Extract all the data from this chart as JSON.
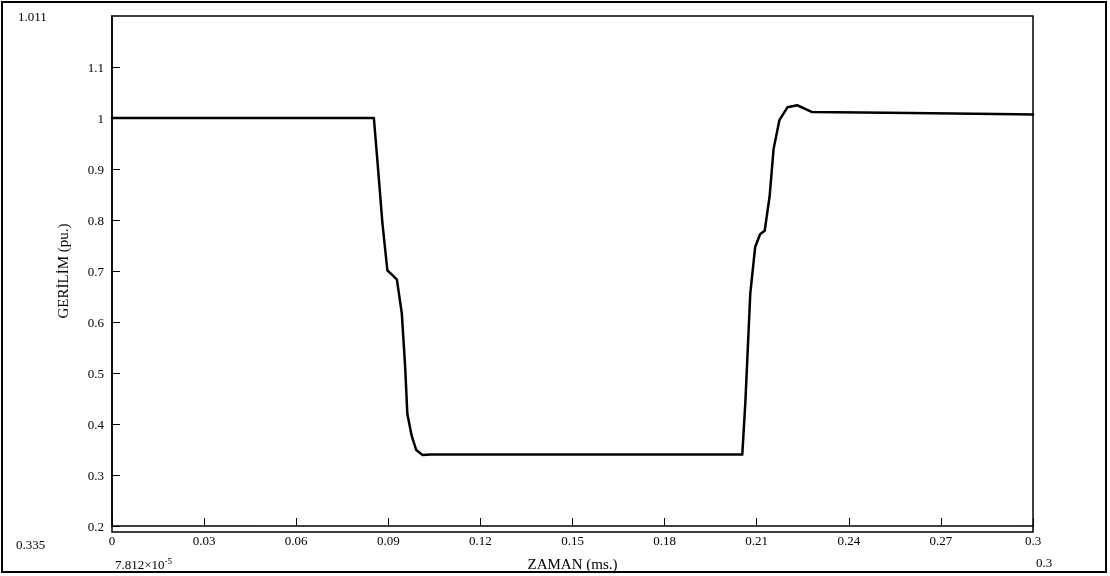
{
  "chart_data": {
    "type": "line",
    "xlabel": "ZAMAN (ms.)",
    "ylabel": "GERİLİM (pu.)",
    "annotations": [
      "1.011",
      "0.335",
      "7.812×10$^{-5}$",
      "0.3"
    ],
    "xlim": [
      0,
      0.3
    ],
    "xticks": [
      0,
      0.03,
      0.06,
      0.09,
      0.12,
      0.15,
      0.18,
      0.21,
      0.24,
      0.27,
      0.3
    ],
    "ylim": [
      0.2,
      1.2
    ],
    "yticks": [
      0.2,
      0.3,
      0.4,
      0.5,
      0.6,
      0.7,
      0.8,
      0.9,
      1,
      1.1
    ],
    "grid": false,
    "marker": "none",
    "line_style": "solid",
    "series": [
      {
        "color": "#000000",
        "x": [
          0,
          0.0853,
          0.0866,
          0.0881,
          0.0897,
          0.0912,
          0.0928,
          0.0944,
          0.0955,
          0.0962,
          0.0976,
          0.0991,
          0.1012,
          0.1038,
          0.2053,
          0.2063,
          0.2071,
          0.2079,
          0.2095,
          0.2111,
          0.2126,
          0.2142,
          0.2155,
          0.2174,
          0.22,
          0.2232,
          0.2279,
          0.26,
          0.3
        ],
        "values": [
          1.0,
          1.0,
          0.905,
          0.793,
          0.701,
          0.693,
          0.683,
          0.617,
          0.511,
          0.42,
          0.377,
          0.349,
          0.339,
          0.34,
          0.34,
          0.442,
          0.548,
          0.655,
          0.747,
          0.772,
          0.779,
          0.846,
          0.939,
          0.996,
          1.021,
          1.025,
          1.012,
          1.01,
          1.007
        ]
      }
    ]
  }
}
